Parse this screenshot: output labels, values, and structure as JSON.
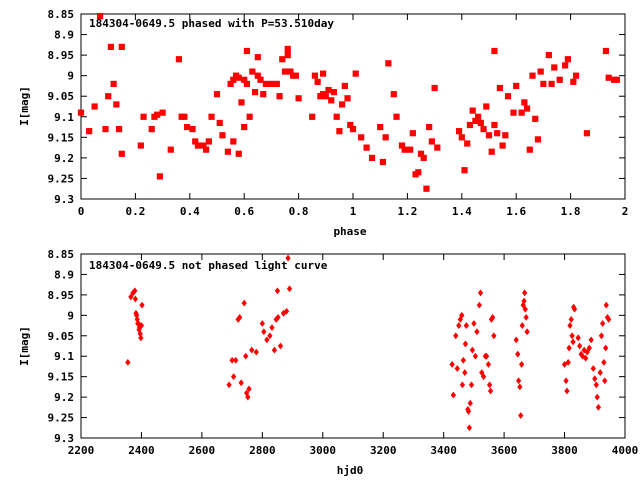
{
  "chart_data": [
    {
      "type": "scatter",
      "title": "184304-0649.5 phased with P=53.510day",
      "xlabel": "phase",
      "ylabel": "I[mag]",
      "xlim": [
        0,
        2
      ],
      "ylim": [
        9.3,
        8.85
      ],
      "y_inverted": true,
      "xticks": [
        0,
        0.2,
        0.4,
        0.6,
        0.8,
        1,
        1.2,
        1.4,
        1.6,
        1.8,
        2
      ],
      "xtick_labels": [
        "0",
        "0.2",
        "0.4",
        "0.6",
        "0.8",
        "1",
        "1.2",
        "1.4",
        "1.6",
        "1.8",
        "2"
      ],
      "yticks": [
        8.85,
        8.9,
        8.95,
        9,
        9.05,
        9.1,
        9.15,
        9.2,
        9.25,
        9.3
      ],
      "ytick_labels": [
        "8.85",
        "8.9",
        "8.95",
        "9",
        "9.05",
        "9.1",
        "9.15",
        "9.2",
        "9.25",
        "9.3"
      ],
      "grid": false,
      "marker_color": "#ff0000",
      "points": [
        [
          0.0,
          9.09
        ],
        [
          0.03,
          9.135
        ],
        [
          0.05,
          9.075
        ],
        [
          0.07,
          8.855
        ],
        [
          0.09,
          9.13
        ],
        [
          0.1,
          9.05
        ],
        [
          0.11,
          8.93
        ],
        [
          0.12,
          9.02
        ],
        [
          0.13,
          9.07
        ],
        [
          0.14,
          9.13
        ],
        [
          0.15,
          8.93
        ],
        [
          0.15,
          9.19
        ],
        [
          0.22,
          9.17
        ],
        [
          0.23,
          9.1
        ],
        [
          0.26,
          9.13
        ],
        [
          0.27,
          9.1
        ],
        [
          0.28,
          9.095
        ],
        [
          0.29,
          9.245
        ],
        [
          0.3,
          9.09
        ],
        [
          0.33,
          9.18
        ],
        [
          0.36,
          8.96
        ],
        [
          0.37,
          9.1
        ],
        [
          0.38,
          9.1
        ],
        [
          0.39,
          9.125
        ],
        [
          0.41,
          9.13
        ],
        [
          0.42,
          9.16
        ],
        [
          0.43,
          9.17
        ],
        [
          0.45,
          9.17
        ],
        [
          0.46,
          9.18
        ],
        [
          0.47,
          9.16
        ],
        [
          0.48,
          9.1
        ],
        [
          0.5,
          9.045
        ],
        [
          0.51,
          9.115
        ],
        [
          0.52,
          9.145
        ],
        [
          0.54,
          9.185
        ],
        [
          0.55,
          9.02
        ],
        [
          0.56,
          9.01
        ],
        [
          0.56,
          9.16
        ],
        [
          0.57,
          9.0
        ],
        [
          0.58,
          9.005
        ],
        [
          0.58,
          9.19
        ],
        [
          0.59,
          9.065
        ],
        [
          0.6,
          9.01
        ],
        [
          0.6,
          9.125
        ],
        [
          0.61,
          8.94
        ],
        [
          0.61,
          9.02
        ],
        [
          0.62,
          9.1
        ],
        [
          0.63,
          8.99
        ],
        [
          0.64,
          9.04
        ],
        [
          0.65,
          9.0
        ],
        [
          0.65,
          8.955
        ],
        [
          0.66,
          9.01
        ],
        [
          0.67,
          9.045
        ],
        [
          0.68,
          9.02
        ],
        [
          0.7,
          9.02
        ],
        [
          0.72,
          9.02
        ],
        [
          0.73,
          9.05
        ],
        [
          0.74,
          8.96
        ],
        [
          0.75,
          8.99
        ],
        [
          0.76,
          8.95
        ],
        [
          0.76,
          8.935
        ],
        [
          0.77,
          8.99
        ],
        [
          0.78,
          9.0
        ],
        [
          0.79,
          9.0
        ],
        [
          0.8,
          9.055
        ],
        [
          0.85,
          9.1
        ],
        [
          0.86,
          9.0
        ],
        [
          0.87,
          9.015
        ],
        [
          0.88,
          9.05
        ],
        [
          0.89,
          8.995
        ],
        [
          0.89,
          9.045
        ],
        [
          0.9,
          9.05
        ],
        [
          0.91,
          9.035
        ],
        [
          0.92,
          9.06
        ],
        [
          0.93,
          9.04
        ],
        [
          0.94,
          9.1
        ],
        [
          0.95,
          9.135
        ],
        [
          0.96,
          9.07
        ],
        [
          0.97,
          9.025
        ],
        [
          0.98,
          9.055
        ],
        [
          0.99,
          9.12
        ],
        [
          1.0,
          9.13
        ],
        [
          1.01,
          8.995
        ],
        [
          1.03,
          9.15
        ],
        [
          1.05,
          9.175
        ],
        [
          1.07,
          9.2
        ],
        [
          1.1,
          9.125
        ],
        [
          1.11,
          9.21
        ],
        [
          1.12,
          9.15
        ],
        [
          1.13,
          8.97
        ],
        [
          1.15,
          9.045
        ],
        [
          1.16,
          9.1
        ],
        [
          1.18,
          9.17
        ],
        [
          1.19,
          9.18
        ],
        [
          1.21,
          9.18
        ],
        [
          1.22,
          9.14
        ],
        [
          1.23,
          9.24
        ],
        [
          1.24,
          9.235
        ],
        [
          1.25,
          9.19
        ],
        [
          1.26,
          9.2
        ],
        [
          1.27,
          9.275
        ],
        [
          1.28,
          9.125
        ],
        [
          1.29,
          9.16
        ],
        [
          1.3,
          9.03
        ],
        [
          1.31,
          9.175
        ],
        [
          1.39,
          9.135
        ],
        [
          1.4,
          9.15
        ],
        [
          1.41,
          9.23
        ],
        [
          1.42,
          9.165
        ],
        [
          1.43,
          9.12
        ],
        [
          1.44,
          9.085
        ],
        [
          1.45,
          9.11
        ],
        [
          1.46,
          9.1
        ],
        [
          1.47,
          9.115
        ],
        [
          1.48,
          9.13
        ],
        [
          1.49,
          9.075
        ],
        [
          1.5,
          9.145
        ],
        [
          1.51,
          9.185
        ],
        [
          1.52,
          9.12
        ],
        [
          1.52,
          8.94
        ],
        [
          1.53,
          9.14
        ],
        [
          1.54,
          9.03
        ],
        [
          1.55,
          9.17
        ],
        [
          1.56,
          9.145
        ],
        [
          1.57,
          9.05
        ],
        [
          1.59,
          9.09
        ],
        [
          1.6,
          9.025
        ],
        [
          1.62,
          9.09
        ],
        [
          1.63,
          9.065
        ],
        [
          1.64,
          9.08
        ],
        [
          1.65,
          9.18
        ],
        [
          1.66,
          9.0
        ],
        [
          1.67,
          9.105
        ],
        [
          1.68,
          9.155
        ],
        [
          1.69,
          8.99
        ],
        [
          1.7,
          9.02
        ],
        [
          1.72,
          8.95
        ],
        [
          1.73,
          9.02
        ],
        [
          1.74,
          8.98
        ],
        [
          1.76,
          9.01
        ],
        [
          1.78,
          8.975
        ],
        [
          1.79,
          8.96
        ],
        [
          1.81,
          9.015
        ],
        [
          1.82,
          9.0
        ],
        [
          1.86,
          9.14
        ],
        [
          1.93,
          8.94
        ],
        [
          1.94,
          9.005
        ],
        [
          1.96,
          9.01
        ],
        [
          1.97,
          9.01
        ]
      ]
    },
    {
      "type": "scatter",
      "title": "184304-0649.5 not phased light curve",
      "xlabel": "hjd0",
      "ylabel": "I[mag]",
      "xlim": [
        2200,
        4000
      ],
      "ylim": [
        9.3,
        8.85
      ],
      "y_inverted": true,
      "xticks": [
        2200,
        2400,
        2600,
        2800,
        3000,
        3200,
        3400,
        3600,
        3800,
        4000
      ],
      "xtick_labels": [
        "2200",
        "2400",
        "2600",
        "2800",
        "3000",
        "3200",
        "3400",
        "3600",
        "3800",
        "4000"
      ],
      "yticks": [
        8.85,
        8.9,
        8.95,
        9,
        9.05,
        9.1,
        9.15,
        9.2,
        9.25,
        9.3
      ],
      "ytick_labels": [
        "8.85",
        "8.9",
        "8.95",
        "9",
        "9.05",
        "9.1",
        "9.15",
        "9.2",
        "9.25",
        "9.3"
      ],
      "grid": false,
      "marker_color": "#ff0000",
      "points": [
        [
          2355,
          9.115
        ],
        [
          2365,
          8.955
        ],
        [
          2372,
          8.945
        ],
        [
          2378,
          8.94
        ],
        [
          2380,
          8.96
        ],
        [
          2382,
          8.995
        ],
        [
          2384,
          9.0
        ],
        [
          2386,
          9.01
        ],
        [
          2388,
          9.02
        ],
        [
          2390,
          9.02
        ],
        [
          2392,
          9.035
        ],
        [
          2394,
          9.03
        ],
        [
          2396,
          9.045
        ],
        [
          2398,
          9.055
        ],
        [
          2400,
          9.025
        ],
        [
          2402,
          8.975
        ],
        [
          2690,
          9.17
        ],
        [
          2700,
          9.11
        ],
        [
          2705,
          9.15
        ],
        [
          2712,
          9.11
        ],
        [
          2720,
          9.01
        ],
        [
          2725,
          9.005
        ],
        [
          2730,
          9.165
        ],
        [
          2740,
          8.97
        ],
        [
          2745,
          9.1
        ],
        [
          2748,
          9.19
        ],
        [
          2752,
          9.2
        ],
        [
          2756,
          9.18
        ],
        [
          2765,
          9.085
        ],
        [
          2780,
          9.09
        ],
        [
          2800,
          9.02
        ],
        [
          2805,
          9.04
        ],
        [
          2815,
          9.06
        ],
        [
          2825,
          9.05
        ],
        [
          2832,
          9.03
        ],
        [
          2840,
          9.085
        ],
        [
          2846,
          9.01
        ],
        [
          2850,
          8.94
        ],
        [
          2852,
          9.005
        ],
        [
          2860,
          9.075
        ],
        [
          2870,
          8.995
        ],
        [
          2880,
          8.99
        ],
        [
          2890,
          8.935
        ],
        [
          2885,
          8.86
        ],
        [
          3428,
          9.12
        ],
        [
          3432,
          9.195
        ],
        [
          3440,
          9.05
        ],
        [
          3445,
          9.13
        ],
        [
          3450,
          9.025
        ],
        [
          3455,
          9.01
        ],
        [
          3460,
          9.0
        ],
        [
          3462,
          9.17
        ],
        [
          3465,
          9.11
        ],
        [
          3470,
          9.14
        ],
        [
          3472,
          9.07
        ],
        [
          3475,
          9.025
        ],
        [
          3480,
          9.23
        ],
        [
          3482,
          9.235
        ],
        [
          3485,
          9.275
        ],
        [
          3488,
          9.215
        ],
        [
          3492,
          9.17
        ],
        [
          3495,
          9.085
        ],
        [
          3500,
          9.02
        ],
        [
          3505,
          9.1
        ],
        [
          3510,
          9.04
        ],
        [
          3518,
          8.975
        ],
        [
          3522,
          8.945
        ],
        [
          3526,
          9.14
        ],
        [
          3532,
          9.15
        ],
        [
          3538,
          9.1
        ],
        [
          3542,
          9.1
        ],
        [
          3548,
          9.12
        ],
        [
          3552,
          9.17
        ],
        [
          3555,
          9.185
        ],
        [
          3558,
          9.01
        ],
        [
          3562,
          9.005
        ],
        [
          3566,
          9.05
        ],
        [
          3640,
          9.06
        ],
        [
          3645,
          9.095
        ],
        [
          3648,
          9.16
        ],
        [
          3652,
          9.175
        ],
        [
          3655,
          9.245
        ],
        [
          3658,
          9.12
        ],
        [
          3660,
          9.025
        ],
        [
          3663,
          8.975
        ],
        [
          3666,
          8.965
        ],
        [
          3668,
          8.945
        ],
        [
          3670,
          8.985
        ],
        [
          3673,
          9.005
        ],
        [
          3676,
          9.04
        ],
        [
          3800,
          9.12
        ],
        [
          3805,
          9.16
        ],
        [
          3808,
          9.185
        ],
        [
          3812,
          9.115
        ],
        [
          3815,
          9.08
        ],
        [
          3818,
          9.025
        ],
        [
          3822,
          9.01
        ],
        [
          3825,
          9.05
        ],
        [
          3828,
          9.065
        ],
        [
          3830,
          8.98
        ],
        [
          3833,
          8.985
        ],
        [
          3845,
          9.055
        ],
        [
          3850,
          9.075
        ],
        [
          3855,
          9.095
        ],
        [
          3860,
          9.1
        ],
        [
          3865,
          9.085
        ],
        [
          3870,
          9.105
        ],
        [
          3875,
          9.09
        ],
        [
          3882,
          9.08
        ],
        [
          3888,
          9.06
        ],
        [
          3895,
          9.13
        ],
        [
          3900,
          9.155
        ],
        [
          3905,
          9.17
        ],
        [
          3908,
          9.2
        ],
        [
          3912,
          9.225
        ],
        [
          3918,
          9.14
        ],
        [
          3922,
          9.05
        ],
        [
          3926,
          9.02
        ],
        [
          3930,
          9.115
        ],
        [
          3933,
          9.16
        ],
        [
          3936,
          9.08
        ],
        [
          3938,
          8.975
        ],
        [
          3942,
          9.005
        ],
        [
          3946,
          9.01
        ]
      ]
    }
  ]
}
